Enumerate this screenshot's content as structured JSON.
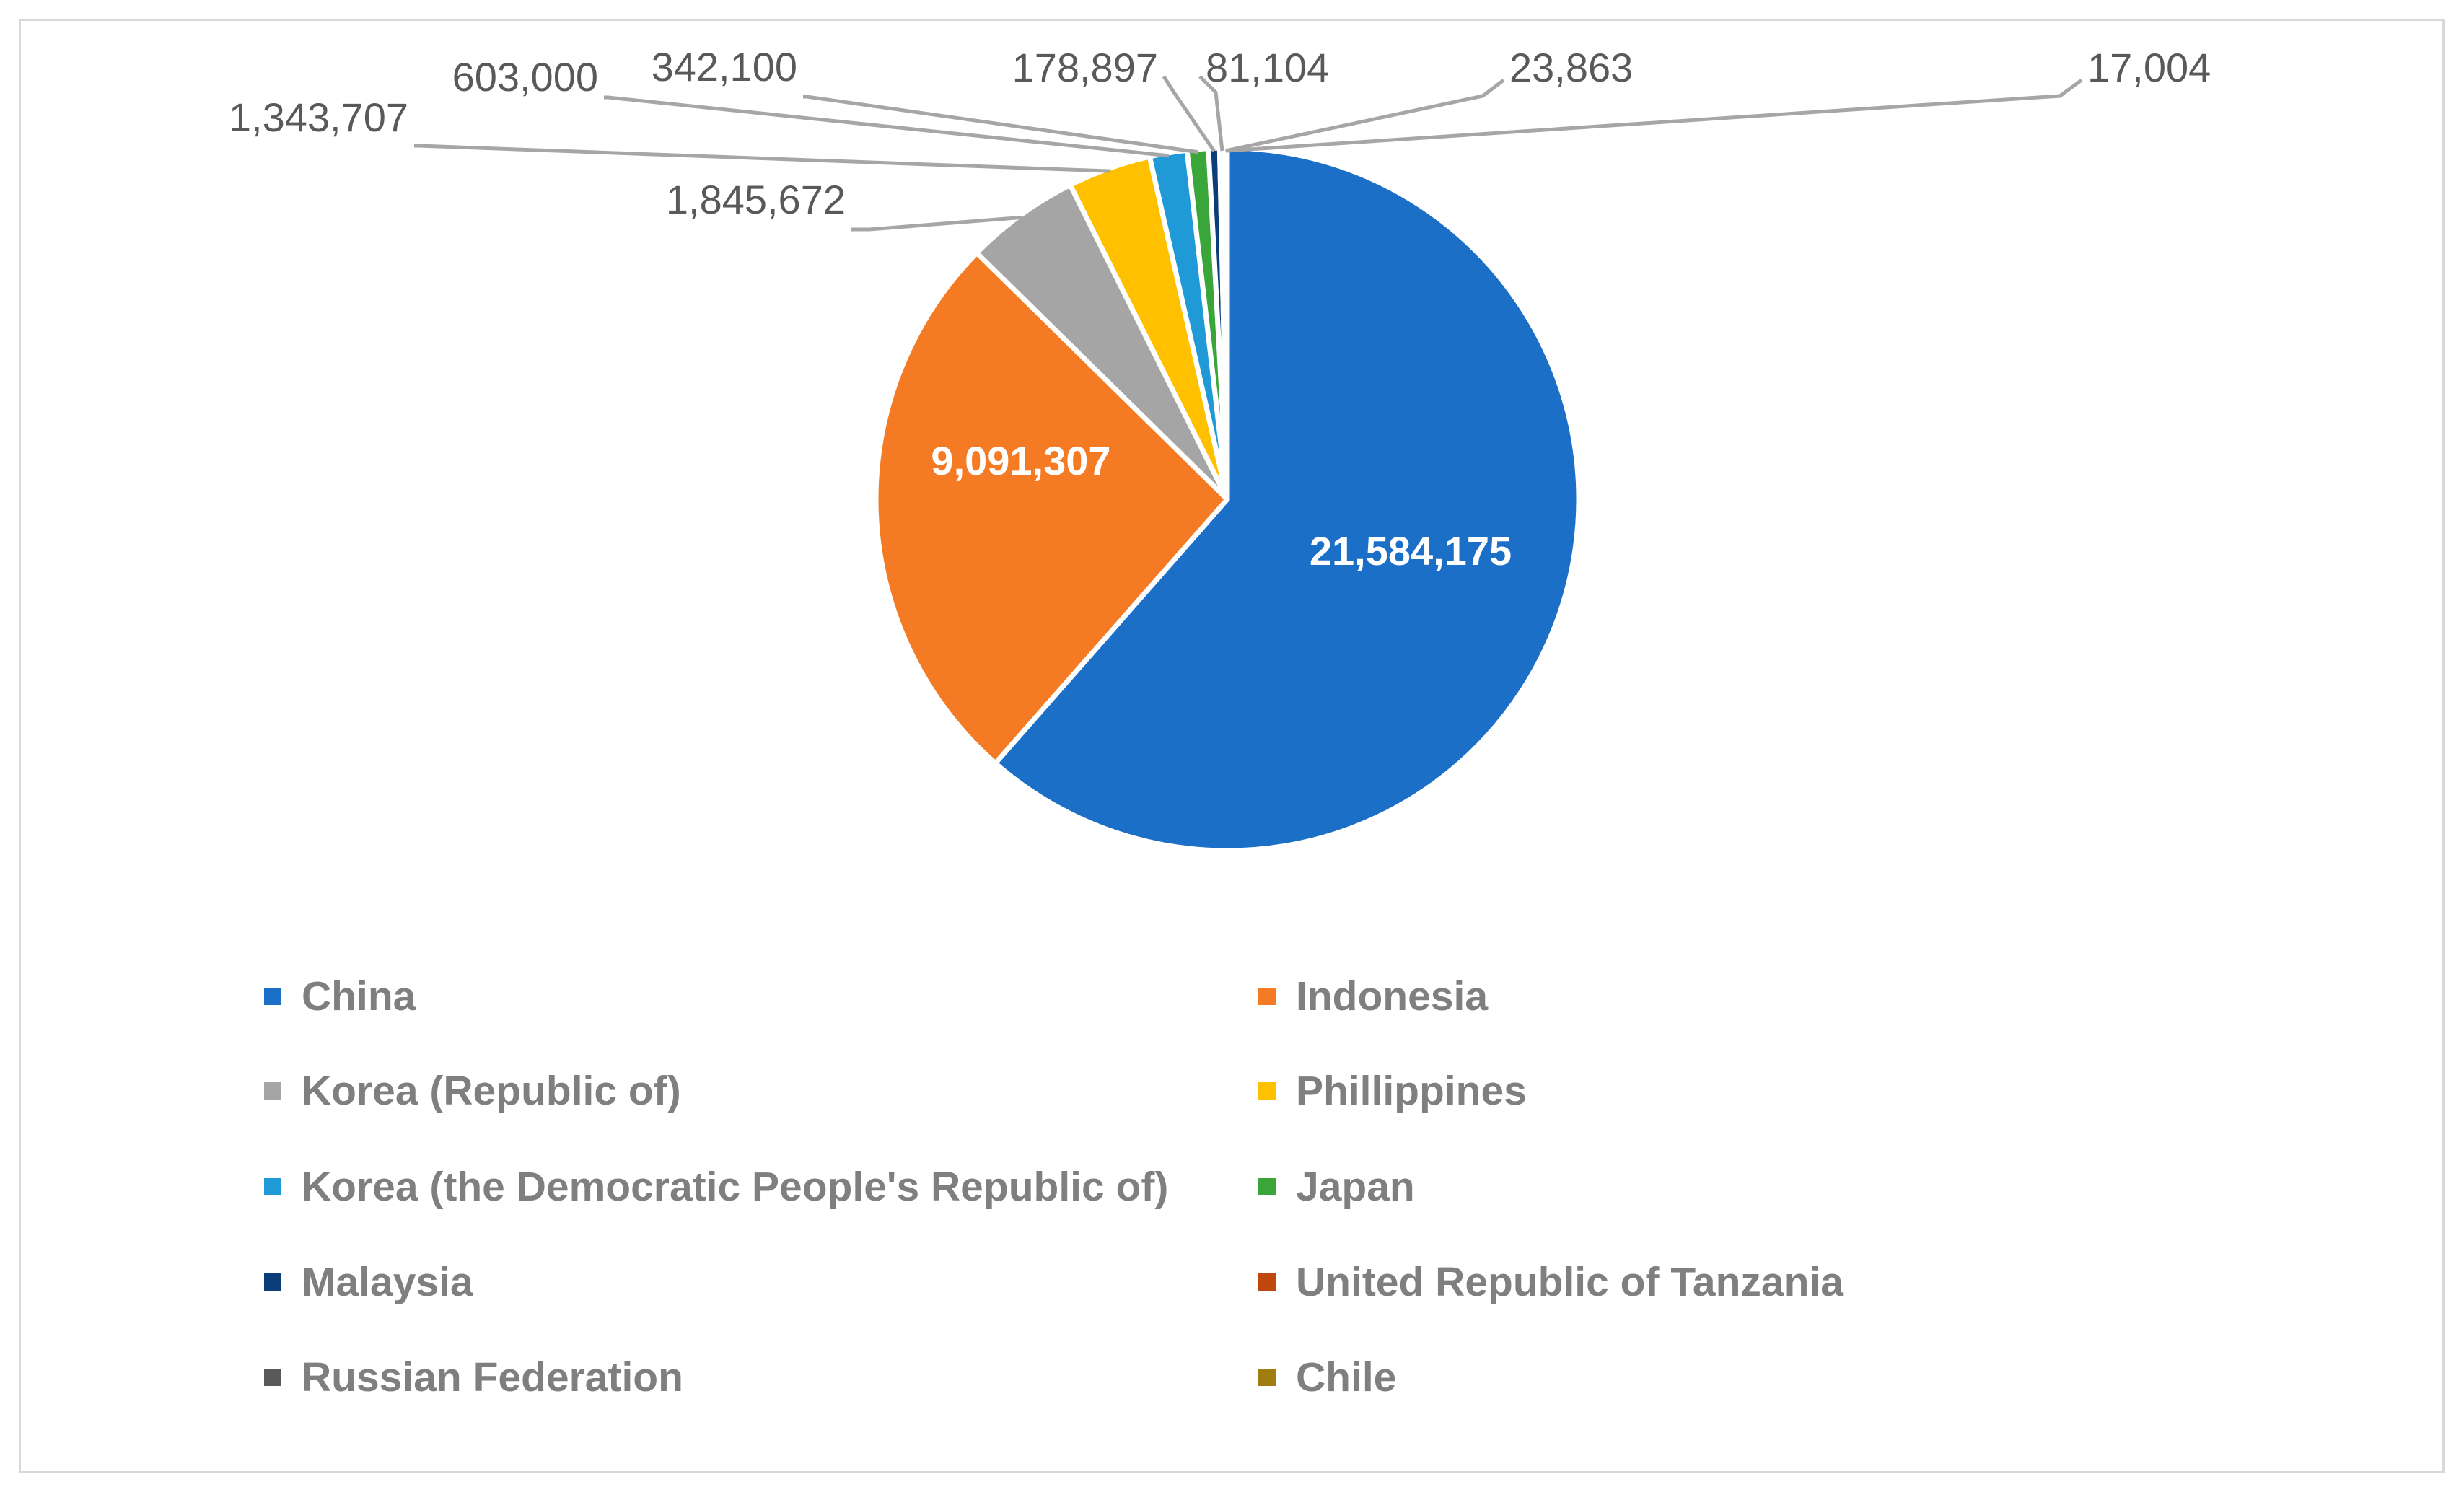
{
  "chart_data": {
    "type": "pie",
    "title": "",
    "legend_position": "bottom",
    "slices": [
      {
        "name": "China",
        "value": 21584175,
        "label": "21,584,175",
        "color": "#1b6fc6"
      },
      {
        "name": "Indonesia",
        "value": 9091307,
        "label": "9,091,307",
        "color": "#f47b24"
      },
      {
        "name": "Korea (Republic of)",
        "value": 1845672,
        "label": "1,845,672",
        "color": "#a5a5a5"
      },
      {
        "name": "Phillippines",
        "value": 1343707,
        "label": "1,343,707",
        "color": "#ffc000"
      },
      {
        "name": "Korea (the Democratic People's Republic of)",
        "value": 603000,
        "label": "603,000",
        "color": "#1f9ad6"
      },
      {
        "name": "Japan",
        "value": 342100,
        "label": "342,100",
        "color": "#3aa63a"
      },
      {
        "name": "Malaysia",
        "value": 178897,
        "label": "178,897",
        "color": "#0b3d78"
      },
      {
        "name": "United Republic of Tanzania",
        "value": 81104,
        "label": "81,104",
        "color": "#c0480f"
      },
      {
        "name": "Russian Federation",
        "value": 23863,
        "label": "23,863",
        "color": "#595959"
      },
      {
        "name": "Chile",
        "value": 17004,
        "label": "17,004",
        "color": "#a07d10"
      }
    ]
  }
}
